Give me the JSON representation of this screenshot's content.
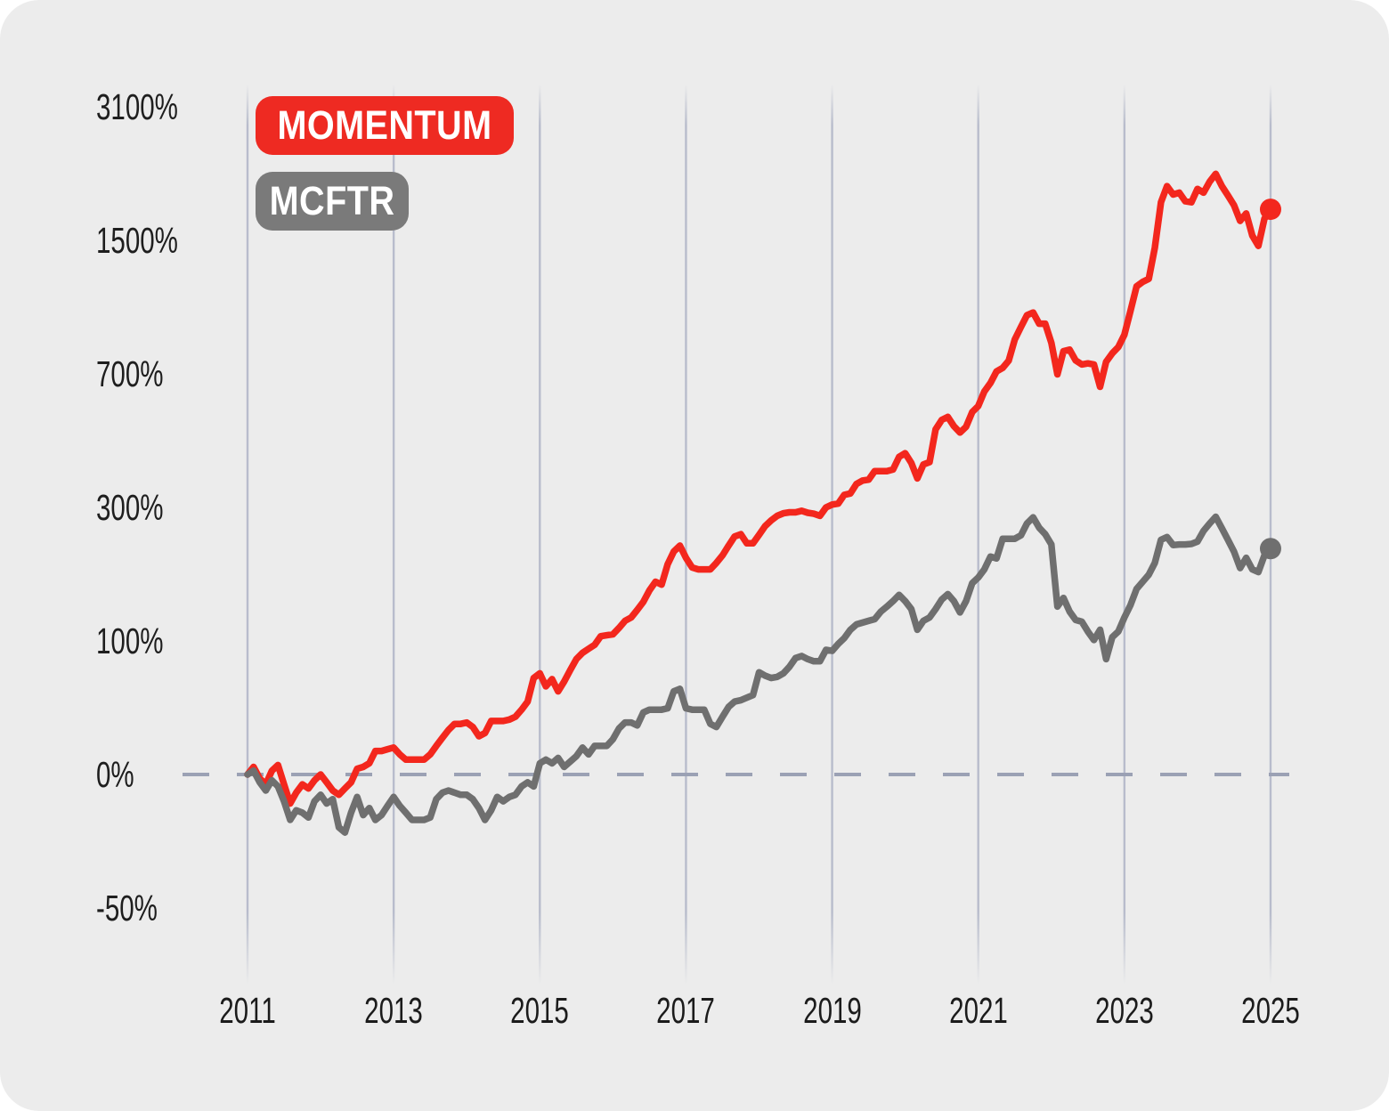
{
  "page": {
    "panel_background": "#ececec",
    "outer_background": "#ffffff"
  },
  "legend": [
    {
      "label": "MOMENTUM",
      "badge_color": "#ee2a22",
      "text_color": "#ffffff"
    },
    {
      "label": "MCFTR",
      "badge_color": "#7a7a7a",
      "text_color": "#ffffff"
    }
  ],
  "chart_data": {
    "type": "line",
    "title": "",
    "grid": "vertical-only",
    "grid_color": "#b2b7c8",
    "zero_line": {
      "value": 0,
      "style": "dashed",
      "color": "#9ba1b4"
    },
    "x_axis": {
      "tick_labels": [
        "2011",
        "2013",
        "2015",
        "2017",
        "2019",
        "2021",
        "2023",
        "2025"
      ],
      "tick_years": [
        2011,
        2013,
        2015,
        2017,
        2019,
        2021,
        2023,
        2025
      ],
      "start_year": 2011,
      "end_year": 2025,
      "interval_months": 1
    },
    "y_axis": {
      "scale": "log2(1 + return/100), equal spacing per doubling",
      "tick_labels": [
        "3100%",
        "1500%",
        "700%",
        "300%",
        "100%",
        "0%",
        "-50%"
      ],
      "tick_values": [
        3100,
        1500,
        700,
        300,
        100,
        0,
        -50
      ]
    },
    "series": [
      {
        "name": "MOMENTUM",
        "color": "#f3271d",
        "end_dot": true,
        "unit": "percent_return",
        "values": [
          0,
          4,
          -2,
          -5,
          2,
          5,
          -5,
          -14,
          -9,
          -5,
          -7,
          -3,
          0,
          -4,
          -8,
          -10,
          -7,
          -4,
          3,
          4,
          6,
          13,
          13,
          14,
          15,
          11,
          8,
          8,
          8,
          8,
          11,
          16,
          21,
          26,
          30,
          30,
          31,
          28,
          22,
          24,
          32,
          32,
          32,
          33,
          35,
          40,
          46,
          65,
          69,
          58,
          64,
          54,
          62,
          72,
          82,
          88,
          92,
          96,
          105,
          106,
          107,
          114,
          122,
          126,
          135,
          145,
          160,
          172,
          168,
          198,
          218,
          228,
          208,
          193,
          190,
          190,
          190,
          200,
          212,
          228,
          244,
          248,
          232,
          232,
          247,
          263,
          274,
          283,
          288,
          290,
          290,
          293,
          289,
          287,
          283,
          300,
          306,
          308,
          327,
          330,
          352,
          360,
          362,
          383,
          383,
          383,
          387,
          420,
          430,
          404,
          365,
          400,
          406,
          500,
          530,
          540,
          510,
          490,
          508,
          556,
          577,
          630,
          663,
          710,
          725,
          757,
          856,
          920,
          985,
          1000,
          938,
          938,
          840,
          698,
          800,
          807,
          758,
          740,
          745,
          740,
          648,
          752,
          790,
          820,
          880,
          1010,
          1160,
          1190,
          1210,
          1440,
          1850,
          2020,
          1930,
          1950,
          1860,
          1850,
          1990,
          1950,
          2070,
          2160,
          2020,
          1920,
          1820,
          1670,
          1740,
          1540,
          1455,
          1690,
          1780
        ]
      },
      {
        "name": "MCFTR",
        "color": "#6f6f6f",
        "end_dot": true,
        "unit": "percent_return",
        "values": [
          0,
          2,
          -4,
          -8,
          -3,
          -6,
          -13,
          -21,
          -17,
          -18,
          -20,
          -13,
          -10,
          -14,
          -12,
          -24,
          -26,
          -18,
          -11,
          -19,
          -16,
          -21,
          -19,
          -15,
          -11,
          -15,
          -18,
          -21,
          -21,
          -21,
          -20,
          -12,
          -9,
          -8,
          -9,
          -10,
          -10,
          -12,
          -16,
          -21,
          -17,
          -11,
          -13,
          -11,
          -10,
          -6,
          -4,
          -6,
          6,
          8,
          6,
          9,
          4,
          7,
          10,
          15,
          11,
          16,
          16,
          16,
          20,
          27,
          31,
          31,
          29,
          38,
          40,
          40,
          40,
          41,
          54,
          56,
          41,
          40,
          40,
          40,
          30,
          28,
          35,
          42,
          46,
          47,
          49,
          51,
          70,
          67,
          65,
          66,
          69,
          75,
          83,
          85,
          82,
          80,
          80,
          91,
          90,
          97,
          103,
          112,
          118,
          120,
          122,
          124,
          133,
          139,
          146,
          154,
          146,
          136,
          112,
          122,
          126,
          136,
          148,
          155,
          146,
          132,
          146,
          170,
          178,
          190,
          210,
          207,
          240,
          240,
          240,
          246,
          268,
          280,
          260,
          248,
          230,
          139,
          150,
          133,
          123,
          121,
          110,
          101,
          112,
          82,
          104,
          110,
          126,
          141,
          162,
          172,
          182,
          200,
          238,
          243,
          229,
          230,
          230,
          231,
          235,
          254,
          268,
          281,
          259,
          238,
          218,
          192,
          208,
          190,
          186,
          212,
          223
        ]
      }
    ]
  }
}
